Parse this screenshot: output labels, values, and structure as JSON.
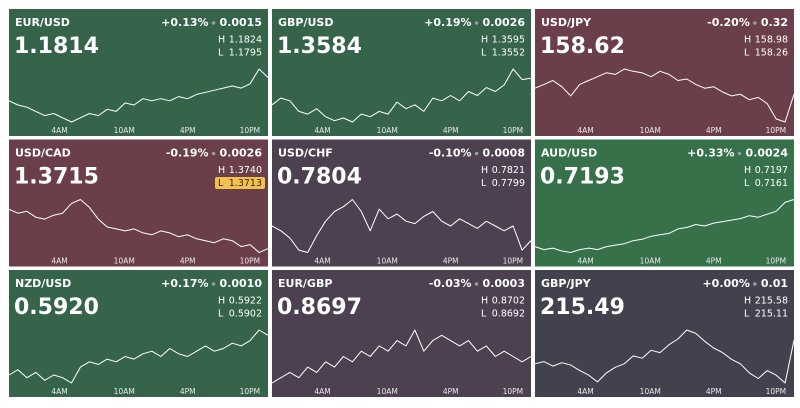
{
  "tiles": [
    {
      "pair": "EUR/USD",
      "change": "+0.13%",
      "change_abs": "0.0015",
      "price": "1.1814",
      "high": {
        "label": "H",
        "value": "1.1824"
      },
      "low": {
        "label": "L",
        "value": "1.1795"
      },
      "color": "#35644a",
      "times": [
        "4AM",
        "10AM",
        "4PM",
        "10PM"
      ],
      "values": [
        1.1807,
        1.1805,
        1.1804,
        1.1802,
        1.18,
        1.1801,
        1.1799,
        1.1797,
        1.1799,
        1.1801,
        1.18,
        1.1803,
        1.1802,
        1.1806,
        1.1805,
        1.1808,
        1.1807,
        1.1808,
        1.1807,
        1.1809,
        1.1808,
        1.181,
        1.1811,
        1.1812,
        1.1813,
        1.1814,
        1.1813,
        1.1815,
        1.1822,
        1.1818
      ]
    },
    {
      "pair": "GBP/USD",
      "change": "+0.19%",
      "change_abs": "0.0026",
      "price": "1.3584",
      "high": {
        "label": "H",
        "value": "1.3595"
      },
      "low": {
        "label": "L",
        "value": "1.3552"
      },
      "color": "#35644a",
      "times": [
        "4AM",
        "10AM",
        "4PM",
        "10PM"
      ],
      "values": [
        1.3565,
        1.357,
        1.3568,
        1.356,
        1.3558,
        1.3562,
        1.3556,
        1.3553,
        1.3555,
        1.3552,
        1.3558,
        1.3556,
        1.356,
        1.3558,
        1.3567,
        1.3562,
        1.3565,
        1.356,
        1.357,
        1.3568,
        1.3572,
        1.3568,
        1.3575,
        1.3572,
        1.3578,
        1.3575,
        1.358,
        1.3592,
        1.3584,
        1.3585
      ]
    },
    {
      "pair": "USD/JPY",
      "change": "-0.20%",
      "change_abs": "0.32",
      "price": "158.62",
      "high": {
        "label": "H",
        "value": "158.98"
      },
      "low": {
        "label": "L",
        "value": "158.26"
      },
      "color": "#6b3f4a",
      "times": [
        "4AM",
        "10AM",
        "4PM",
        "10PM"
      ],
      "values": [
        158.7,
        158.75,
        158.8,
        158.72,
        158.6,
        158.75,
        158.8,
        158.85,
        158.9,
        158.88,
        158.95,
        158.92,
        158.9,
        158.85,
        158.92,
        158.88,
        158.8,
        158.82,
        158.75,
        158.7,
        158.72,
        158.65,
        158.6,
        158.62,
        158.55,
        158.58,
        158.5,
        158.3,
        158.26,
        158.62
      ]
    },
    {
      "pair": "USD/CAD",
      "change": "-0.19%",
      "change_abs": "0.0026",
      "price": "1.3715",
      "high": {
        "label": "H",
        "value": "1.3740"
      },
      "low": {
        "label": "L",
        "value": "1.3713",
        "highlight": true
      },
      "color": "#6b3f4a",
      "times": [
        "4AM",
        "10AM",
        "4PM",
        "10PM"
      ],
      "values": [
        1.3735,
        1.3733,
        1.3734,
        1.3731,
        1.373,
        1.3732,
        1.3733,
        1.3738,
        1.374,
        1.3736,
        1.373,
        1.3726,
        1.3725,
        1.3724,
        1.3725,
        1.3723,
        1.3722,
        1.3724,
        1.3723,
        1.3721,
        1.3722,
        1.372,
        1.3719,
        1.3718,
        1.372,
        1.3719,
        1.3716,
        1.3717,
        1.3713,
        1.3715
      ]
    },
    {
      "pair": "USD/CHF",
      "change": "-0.10%",
      "change_abs": "0.0008",
      "price": "0.7804",
      "high": {
        "label": "H",
        "value": "0.7821"
      },
      "low": {
        "label": "L",
        "value": "0.7799"
      },
      "color": "#4d4050",
      "times": [
        "4AM",
        "10AM",
        "4PM",
        "10PM"
      ],
      "values": [
        0.781,
        0.7808,
        0.7805,
        0.78,
        0.7799,
        0.7806,
        0.7812,
        0.7816,
        0.7818,
        0.7821,
        0.7816,
        0.7808,
        0.7817,
        0.7813,
        0.7815,
        0.7812,
        0.7811,
        0.7814,
        0.7816,
        0.7812,
        0.781,
        0.7813,
        0.7811,
        0.7809,
        0.7812,
        0.781,
        0.7808,
        0.781,
        0.78,
        0.7804
      ]
    },
    {
      "pair": "AUD/USD",
      "change": "+0.33%",
      "change_abs": "0.0024",
      "price": "0.7193",
      "high": {
        "label": "H",
        "value": "0.7197"
      },
      "low": {
        "label": "L",
        "value": "0.7161"
      },
      "color": "#36714a",
      "times": [
        "4AM",
        "10AM",
        "4PM",
        "10PM"
      ],
      "values": [
        0.7165,
        0.7163,
        0.7164,
        0.7162,
        0.7161,
        0.7163,
        0.7164,
        0.7163,
        0.7165,
        0.7166,
        0.7167,
        0.7169,
        0.717,
        0.7172,
        0.7173,
        0.7174,
        0.7177,
        0.7178,
        0.718,
        0.7179,
        0.7181,
        0.7182,
        0.7183,
        0.7184,
        0.7186,
        0.7185,
        0.7187,
        0.7189,
        0.7195,
        0.7197
      ]
    },
    {
      "pair": "NZD/USD",
      "change": "+0.17%",
      "change_abs": "0.0010",
      "price": "0.5920",
      "high": {
        "label": "H",
        "value": "0.5922"
      },
      "low": {
        "label": "L",
        "value": "0.5902"
      },
      "color": "#35644a",
      "times": [
        "4AM",
        "10AM",
        "4PM",
        "10PM"
      ],
      "values": [
        0.5905,
        0.5907,
        0.5904,
        0.5906,
        0.5903,
        0.5905,
        0.5904,
        0.5902,
        0.5908,
        0.591,
        0.5909,
        0.5911,
        0.591,
        0.5912,
        0.5911,
        0.5913,
        0.5914,
        0.5912,
        0.5915,
        0.5913,
        0.5912,
        0.5914,
        0.5916,
        0.5914,
        0.5915,
        0.5917,
        0.5916,
        0.5918,
        0.5922,
        0.592
      ]
    },
    {
      "pair": "EUR/GBP",
      "change": "-0.03%",
      "change_abs": "0.0003",
      "price": "0.8697",
      "high": {
        "label": "H",
        "value": "0.8702"
      },
      "low": {
        "label": "L",
        "value": "0.8692"
      },
      "color": "#4d4050",
      "times": [
        "4AM",
        "10AM",
        "4PM",
        "10PM"
      ],
      "values": [
        0.8692,
        0.8693,
        0.8694,
        0.8693,
        0.8695,
        0.8694,
        0.8696,
        0.8695,
        0.8697,
        0.8696,
        0.8698,
        0.8697,
        0.8699,
        0.8698,
        0.87,
        0.8699,
        0.8702,
        0.8698,
        0.87,
        0.8701,
        0.87,
        0.8699,
        0.87,
        0.8698,
        0.8699,
        0.8697,
        0.8698,
        0.8697,
        0.8696,
        0.8697
      ]
    },
    {
      "pair": "GBP/JPY",
      "change": "+0.00%",
      "change_abs": "0.01",
      "price": "215.49",
      "high": {
        "label": "H",
        "value": "215.58"
      },
      "low": {
        "label": "L",
        "value": "215.11"
      },
      "color": "#42424f",
      "times": [
        "4AM",
        "10AM",
        "4PM",
        "10PM"
      ],
      "values": [
        215.28,
        215.3,
        215.26,
        215.29,
        215.27,
        215.22,
        215.18,
        215.12,
        215.2,
        215.25,
        215.28,
        215.35,
        215.33,
        215.4,
        215.38,
        215.45,
        215.5,
        215.58,
        215.55,
        215.48,
        215.42,
        215.38,
        215.32,
        215.28,
        215.2,
        215.15,
        215.22,
        215.18,
        215.11,
        215.49
      ]
    }
  ]
}
